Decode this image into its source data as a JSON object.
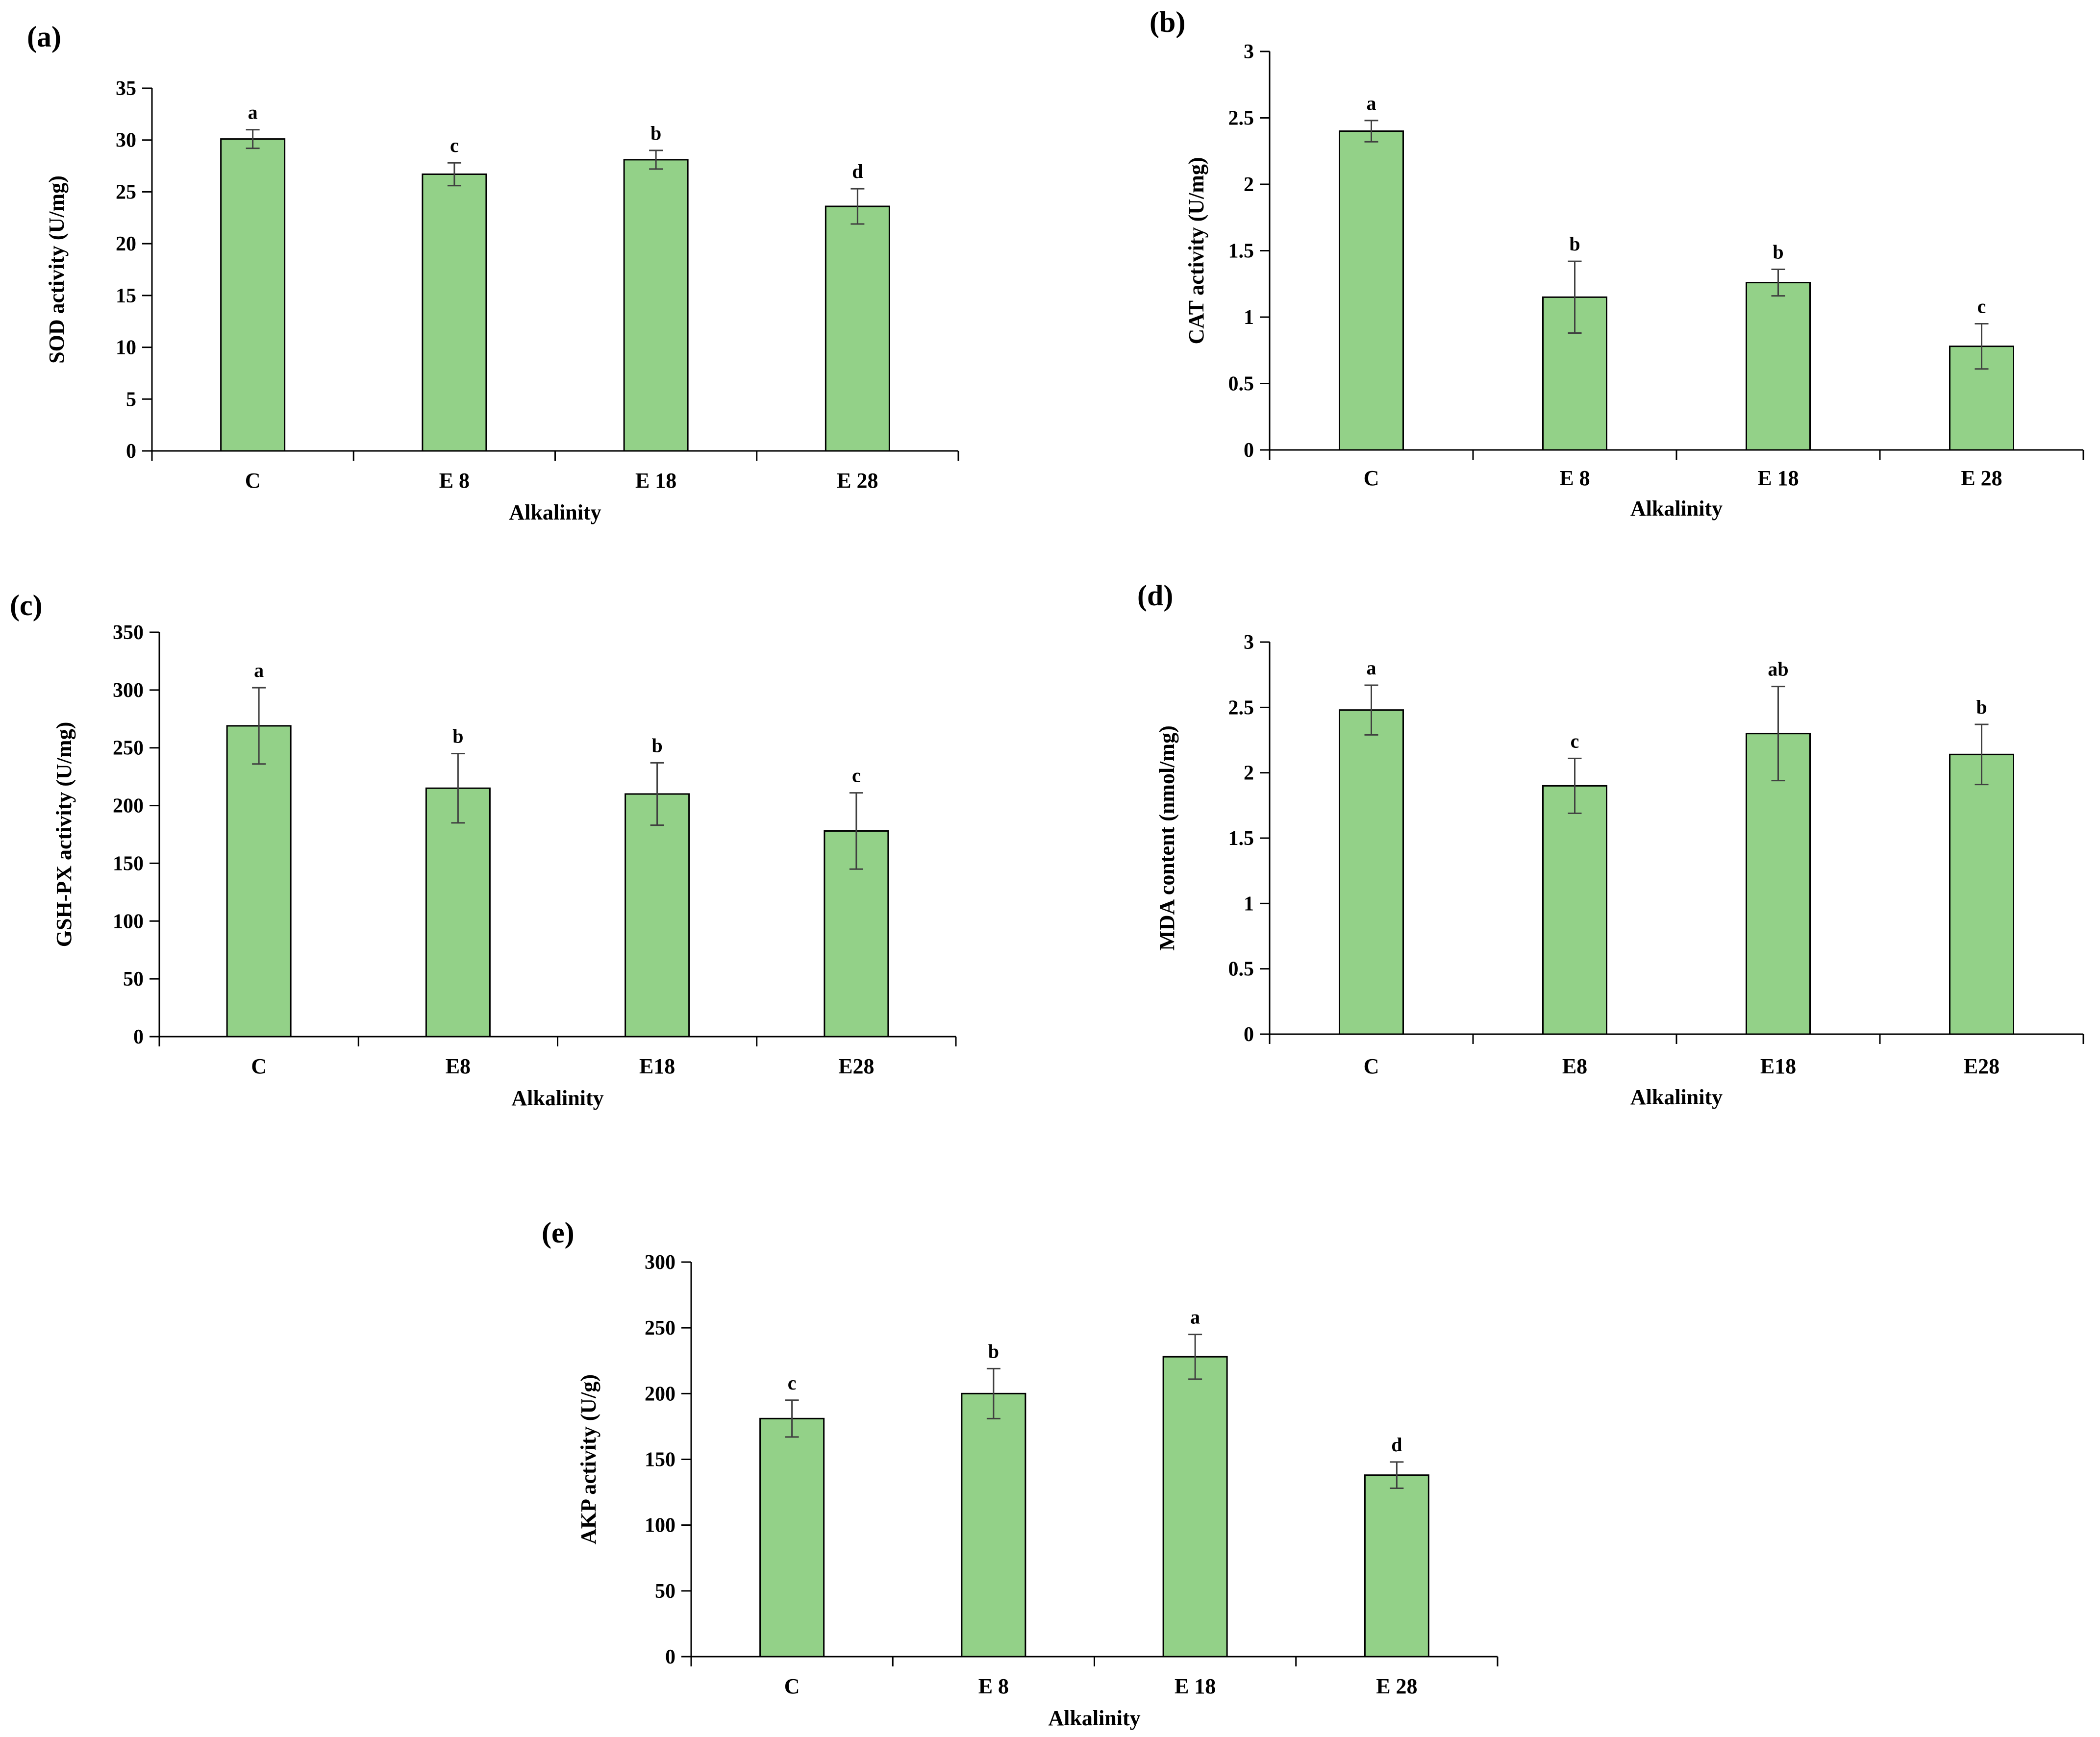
{
  "colors": {
    "bar": "#93d188",
    "axis": "#000000",
    "error": "#404040"
  },
  "chart_data": [
    {
      "panel": "(a)",
      "type": "bar",
      "categories": [
        "C",
        "E 8",
        "E 18",
        "E 28"
      ],
      "values": [
        30.1,
        26.7,
        28.1,
        23.6
      ],
      "errors": [
        0.9,
        1.1,
        0.9,
        1.7
      ],
      "significance": [
        "a",
        "c",
        "b",
        "d"
      ],
      "ylabel": "SOD activity  (U/mg)",
      "xlabel": "Alkalinity",
      "ylim": [
        0,
        35
      ],
      "yticks": [
        0,
        5,
        10,
        15,
        20,
        25,
        30,
        35
      ],
      "ytick_labels": [
        "0",
        "5",
        "10",
        "15",
        "20",
        "25",
        "30",
        "35"
      ]
    },
    {
      "panel": "(b)",
      "type": "bar",
      "categories": [
        "C",
        "E 8",
        "E 18",
        "E 28"
      ],
      "values": [
        2.4,
        1.15,
        1.26,
        0.78
      ],
      "errors": [
        0.08,
        0.27,
        0.1,
        0.17
      ],
      "significance": [
        "a",
        "b",
        "b",
        "c"
      ],
      "ylabel": "CAT activity  (U/mg)",
      "xlabel": "Alkalinity",
      "ylim": [
        0,
        3
      ],
      "yticks": [
        0,
        0.5,
        1,
        1.5,
        2,
        2.5,
        3
      ],
      "ytick_labels": [
        "0",
        "0.5",
        "1",
        "1.5",
        "2",
        "2.5",
        "3"
      ]
    },
    {
      "panel": "(c)",
      "type": "bar",
      "categories": [
        "C",
        "E8",
        "E18",
        "E28"
      ],
      "values": [
        269,
        215,
        210,
        178
      ],
      "errors": [
        33,
        30,
        27,
        33
      ],
      "significance": [
        "a",
        "b",
        "b",
        "c"
      ],
      "ylabel": "GSH-PX activity  (U/mg)",
      "xlabel": "Alkalinity",
      "ylim": [
        0,
        350
      ],
      "yticks": [
        0,
        50,
        100,
        150,
        200,
        250,
        300,
        350
      ],
      "ytick_labels": [
        "0",
        "50",
        "100",
        "150",
        "200",
        "250",
        "300",
        "350"
      ]
    },
    {
      "panel": "(d)",
      "type": "bar",
      "categories": [
        "C",
        "E8",
        "E18",
        "E28"
      ],
      "values": [
        2.48,
        1.9,
        2.3,
        2.14
      ],
      "errors": [
        0.19,
        0.21,
        0.36,
        0.23
      ],
      "significance": [
        "a",
        "c",
        "ab",
        "b"
      ],
      "ylabel": "MDA  content  (nmol/mg)",
      "xlabel": "Alkalinity",
      "ylim": [
        0,
        3
      ],
      "yticks": [
        0,
        0.5,
        1,
        1.5,
        2,
        2.5,
        3
      ],
      "ytick_labels": [
        "0",
        "0.5",
        "1",
        "1.5",
        "2",
        "2.5",
        "3"
      ]
    },
    {
      "panel": "(e)",
      "type": "bar",
      "categories": [
        "C",
        "E 8",
        "E 18",
        "E 28"
      ],
      "values": [
        181,
        200,
        228,
        138
      ],
      "errors": [
        14,
        19,
        17,
        10
      ],
      "significance": [
        "c",
        "b",
        "a",
        "d"
      ],
      "ylabel": "AKP activity  (U/g)",
      "xlabel": "Alkalinity",
      "ylim": [
        0,
        300
      ],
      "yticks": [
        0,
        50,
        100,
        150,
        200,
        250,
        300
      ],
      "ytick_labels": [
        "0",
        "50",
        "100",
        "150",
        "200",
        "250",
        "300"
      ]
    }
  ]
}
